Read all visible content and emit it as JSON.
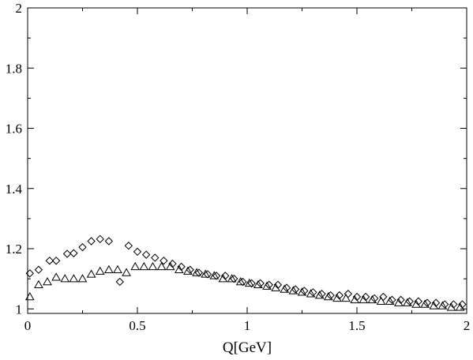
{
  "chart_data": {
    "type": "scatter",
    "title": "",
    "xlabel": "Q[GeV]",
    "ylabel": "",
    "xlim": [
      0,
      2
    ],
    "ylim": [
      0.985,
      2.0
    ],
    "x_ticks": [
      0,
      0.5,
      1,
      1.5,
      2
    ],
    "x_tick_labels": [
      "0",
      "0.5",
      "1",
      "1.5",
      "2"
    ],
    "y_ticks": [
      1,
      1.2,
      1.4,
      1.6,
      1.8,
      2
    ],
    "y_tick_labels": [
      "1",
      "1.2",
      "1.4",
      "1.6",
      "1.8",
      "2"
    ],
    "grid": false,
    "legend": "none",
    "series": [
      {
        "marker": "diamond",
        "color": "#000000",
        "x": [
          0.01,
          0.05,
          0.1,
          0.13,
          0.18,
          0.21,
          0.25,
          0.29,
          0.33,
          0.37,
          0.42,
          0.46,
          0.5,
          0.54,
          0.58,
          0.62,
          0.66,
          0.7,
          0.74,
          0.78,
          0.82,
          0.86,
          0.9,
          0.94,
          0.98,
          1.02,
          1.06,
          1.1,
          1.14,
          1.18,
          1.22,
          1.26,
          1.3,
          1.34,
          1.38,
          1.42,
          1.46,
          1.5,
          1.54,
          1.58,
          1.62,
          1.66,
          1.7,
          1.74,
          1.78,
          1.82,
          1.86,
          1.9,
          1.94,
          1.98
        ],
        "y": [
          1.118,
          1.13,
          1.16,
          1.16,
          1.183,
          1.185,
          1.205,
          1.225,
          1.232,
          1.225,
          1.09,
          1.21,
          1.19,
          1.18,
          1.17,
          1.16,
          1.15,
          1.14,
          1.13,
          1.12,
          1.115,
          1.11,
          1.11,
          1.1,
          1.09,
          1.085,
          1.085,
          1.08,
          1.08,
          1.07,
          1.065,
          1.06,
          1.055,
          1.05,
          1.045,
          1.045,
          1.05,
          1.04,
          1.04,
          1.035,
          1.04,
          1.03,
          1.03,
          1.025,
          1.025,
          1.02,
          1.02,
          1.015,
          1.015,
          1.015
        ]
      },
      {
        "marker": "triangle",
        "color": "#000000",
        "x": [
          0.01,
          0.05,
          0.09,
          0.13,
          0.17,
          0.21,
          0.25,
          0.29,
          0.33,
          0.37,
          0.41,
          0.45,
          0.49,
          0.53,
          0.57,
          0.61,
          0.65,
          0.69,
          0.73,
          0.77,
          0.81,
          0.85,
          0.89,
          0.93,
          0.97,
          1.01,
          1.05,
          1.09,
          1.13,
          1.17,
          1.21,
          1.25,
          1.29,
          1.33,
          1.37,
          1.41,
          1.45,
          1.49,
          1.53,
          1.57,
          1.61,
          1.65,
          1.69,
          1.73,
          1.77,
          1.81,
          1.85,
          1.89,
          1.93,
          1.97
        ],
        "y": [
          1.04,
          1.08,
          1.09,
          1.105,
          1.1,
          1.1,
          1.1,
          1.115,
          1.125,
          1.13,
          1.13,
          1.12,
          1.14,
          1.14,
          1.14,
          1.14,
          1.14,
          1.13,
          1.125,
          1.12,
          1.115,
          1.11,
          1.1,
          1.1,
          1.09,
          1.085,
          1.08,
          1.075,
          1.07,
          1.065,
          1.06,
          1.055,
          1.05,
          1.045,
          1.04,
          1.035,
          1.035,
          1.03,
          1.03,
          1.03,
          1.025,
          1.025,
          1.02,
          1.02,
          1.015,
          1.015,
          1.01,
          1.01,
          1.005,
          1.005
        ]
      }
    ]
  }
}
